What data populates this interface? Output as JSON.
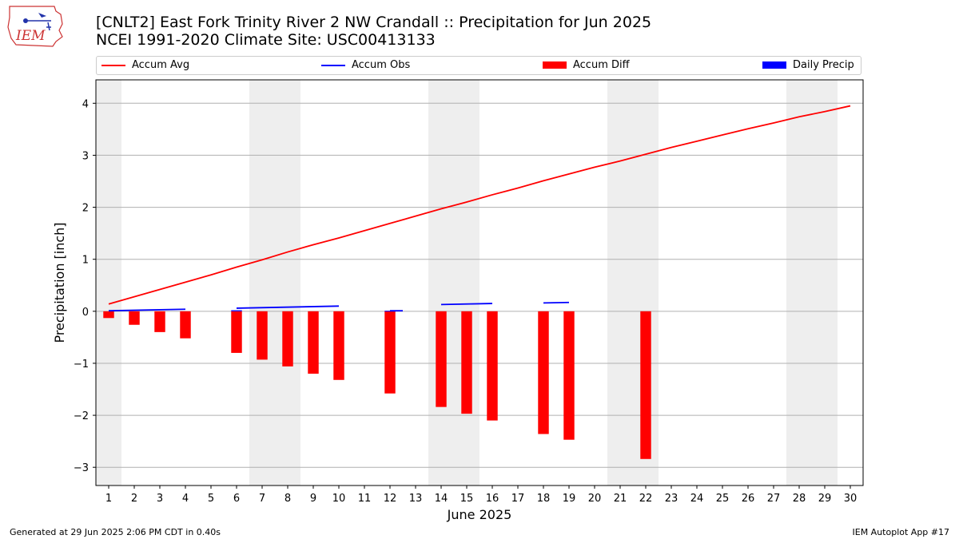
{
  "logo": {
    "text": "IEM"
  },
  "header": {
    "title_line1": "[CNLT2] East Fork Trinity River 2 NW Crandall :: Precipitation for Jun 2025",
    "title_line2": "NCEI 1991-2020 Climate Site: USC00413133"
  },
  "legend": {
    "items": [
      {
        "label": "Accum Avg",
        "kind": "line",
        "color": "#ff0000"
      },
      {
        "label": "Accum Obs",
        "kind": "line",
        "color": "#0000ff"
      },
      {
        "label": "Accum Diff",
        "kind": "box",
        "color": "#ff0000"
      },
      {
        "label": "Daily Precip",
        "kind": "box",
        "color": "#0000ff"
      }
    ]
  },
  "footer": {
    "left": "Generated at 29 Jun 2025 2:06 PM CDT in 0.40s",
    "right": "IEM Autoplot App #17"
  },
  "chart_data": {
    "type": "bar",
    "xlabel": "June 2025",
    "ylabel": "Precipitation [inch]",
    "xlim": [
      0.5,
      30.5
    ],
    "ylim": [
      -3.35,
      4.45
    ],
    "yticks": [
      -3,
      -2,
      -1,
      0,
      1,
      2,
      3,
      4
    ],
    "ytick_labels": [
      "−3",
      "−2",
      "−1",
      "0",
      "1",
      "2",
      "3",
      "4"
    ],
    "x": [
      1,
      2,
      3,
      4,
      5,
      6,
      7,
      8,
      9,
      10,
      11,
      12,
      13,
      14,
      15,
      16,
      17,
      18,
      19,
      20,
      21,
      22,
      23,
      24,
      25,
      26,
      27,
      28,
      29,
      30
    ],
    "grid": true,
    "weekend_shading": [
      [
        0.5,
        1.5
      ],
      [
        6.5,
        8.5
      ],
      [
        13.5,
        15.5
      ],
      [
        20.5,
        22.5
      ],
      [
        27.5,
        29.5
      ]
    ],
    "weekend_color": "#eeeeee",
    "series": [
      {
        "name": "Accum Avg",
        "kind": "line",
        "color": "#ff0000",
        "values": [
          0.14,
          0.28,
          0.42,
          0.56,
          0.7,
          0.85,
          0.99,
          1.14,
          1.28,
          1.41,
          1.55,
          1.69,
          1.83,
          1.97,
          2.1,
          2.24,
          2.37,
          2.51,
          2.64,
          2.77,
          2.89,
          3.02,
          3.15,
          3.27,
          3.39,
          3.51,
          3.62,
          3.74,
          3.84,
          3.95
        ]
      },
      {
        "name": "Accum Obs",
        "kind": "line",
        "color": "#0000ff",
        "segments": [
          [
            [
              1,
              0.01
            ],
            [
              4,
              0.04
            ]
          ],
          [
            [
              6,
              0.06
            ],
            [
              10,
              0.1
            ]
          ],
          [
            [
              12,
              0.01
            ],
            [
              12.5,
              0.01
            ]
          ],
          [
            [
              14,
              0.13
            ],
            [
              16,
              0.15
            ]
          ],
          [
            [
              18,
              0.16
            ],
            [
              19,
              0.17
            ]
          ]
        ]
      },
      {
        "name": "Accum Diff",
        "kind": "bar",
        "color": "#ff0000",
        "bars": [
          [
            1,
            -0.13
          ],
          [
            2,
            -0.26
          ],
          [
            3,
            -0.4
          ],
          [
            4,
            -0.52
          ],
          [
            6,
            -0.8
          ],
          [
            7,
            -0.93
          ],
          [
            8,
            -1.06
          ],
          [
            9,
            -1.2
          ],
          [
            10,
            -1.32
          ],
          [
            12,
            -1.58
          ],
          [
            14,
            -1.84
          ],
          [
            15,
            -1.97
          ],
          [
            16,
            -2.1
          ],
          [
            18,
            -2.36
          ],
          [
            19,
            -2.47
          ],
          [
            22,
            -2.84
          ]
        ]
      },
      {
        "name": "Daily Precip",
        "kind": "bar",
        "color": "#0000ff",
        "bars": [
          [
            6,
            0.02
          ],
          [
            12,
            0.01
          ]
        ]
      }
    ]
  }
}
